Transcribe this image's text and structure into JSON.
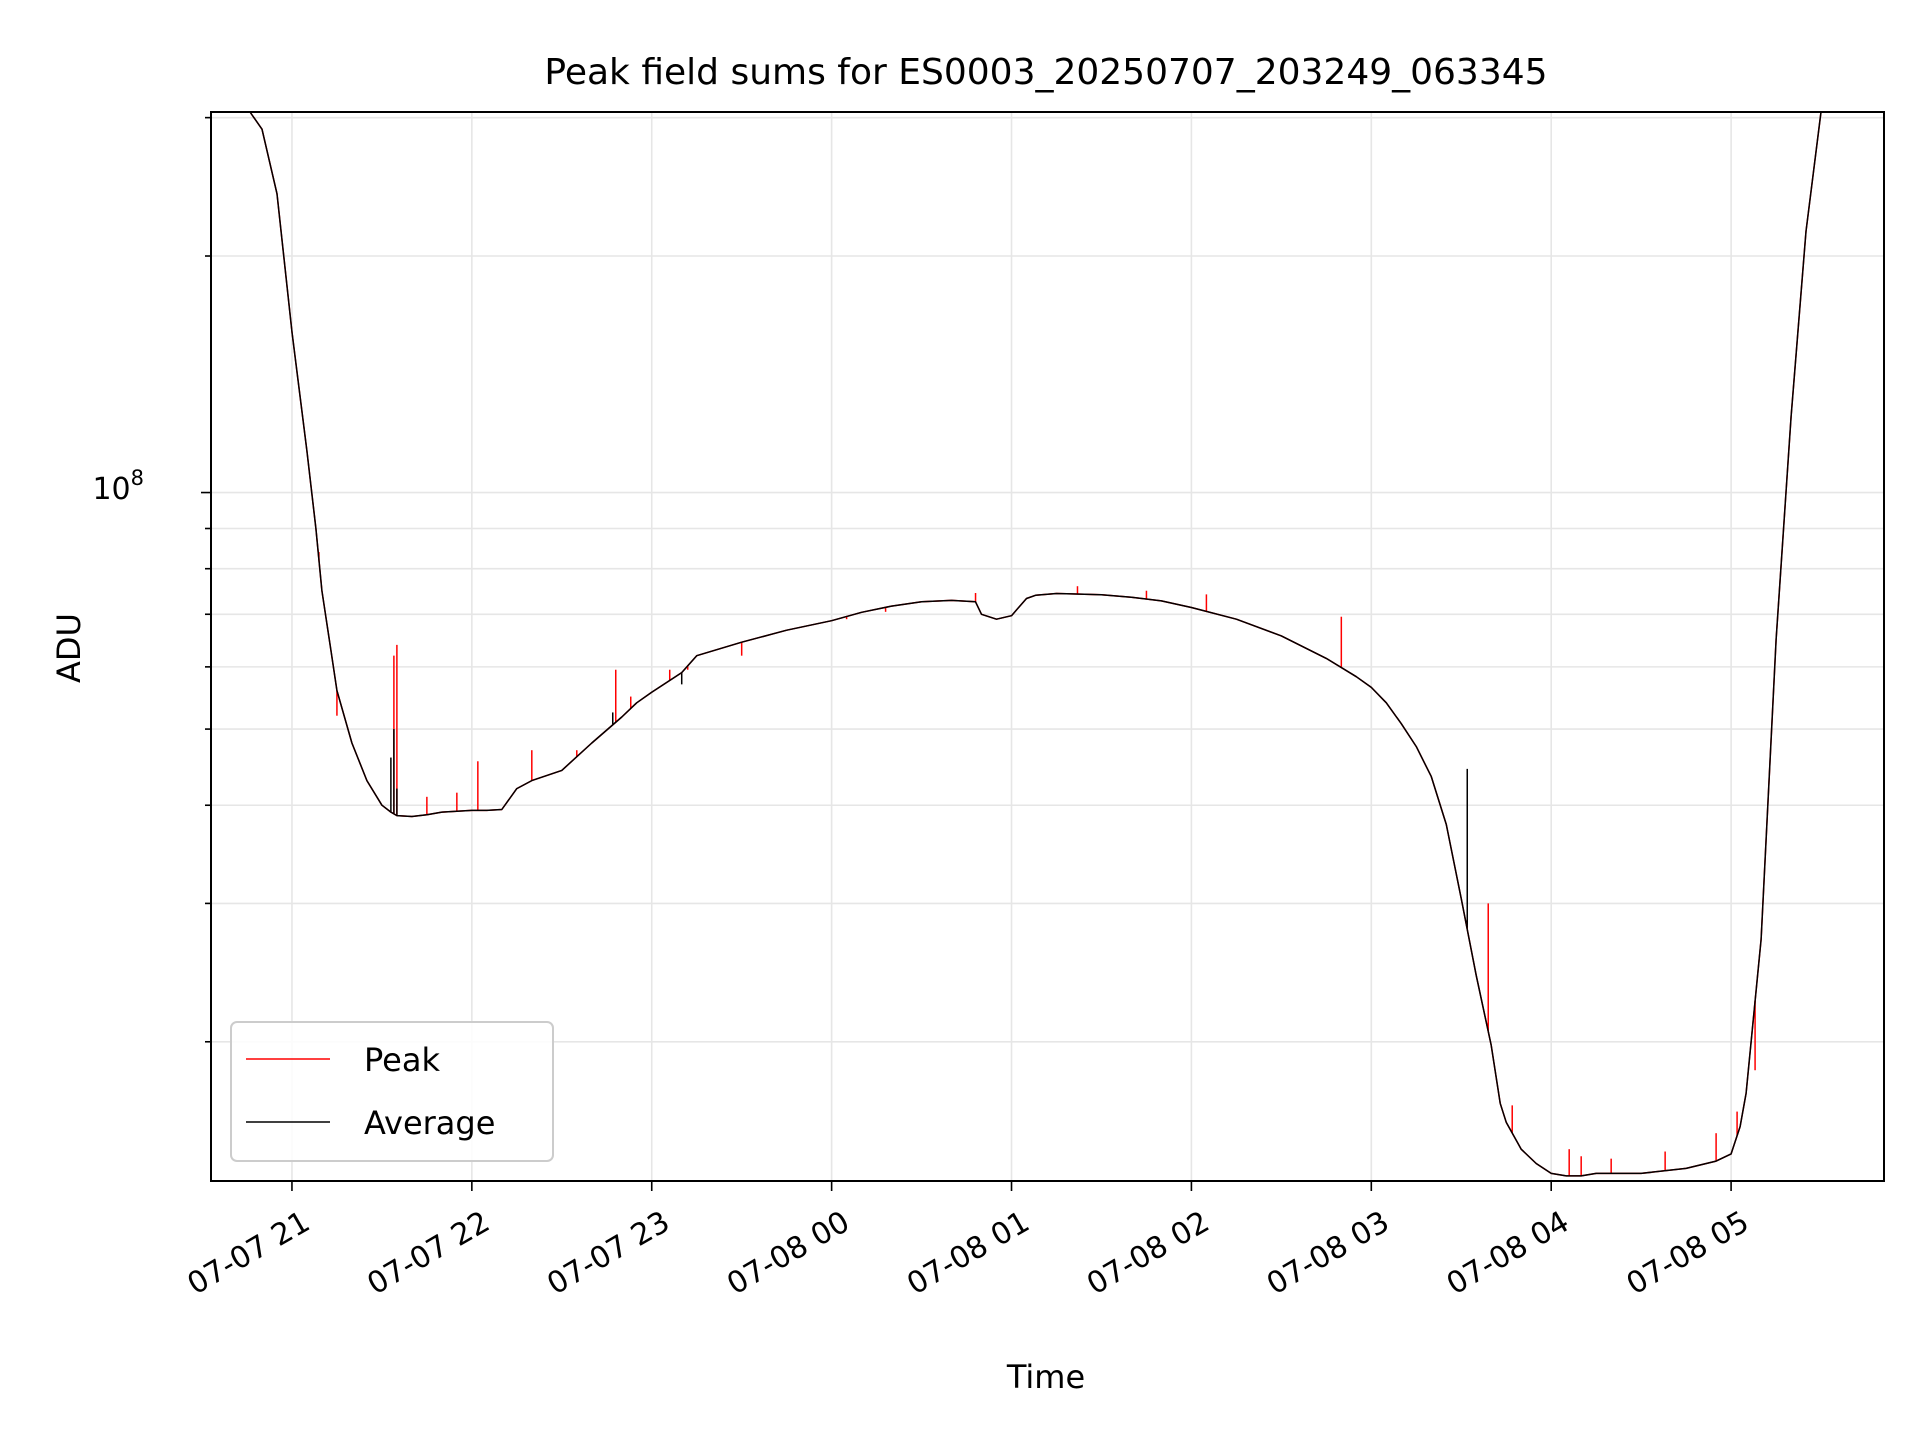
{
  "chart_data": {
    "type": "line",
    "title": "Peak field sums for ES0003_20250707_203249_063345",
    "xlabel": "Time",
    "ylabel": "ADU",
    "y_scale": "log",
    "y_tick_label": {
      "base": "10",
      "exp": "8",
      "value": 100000000
    },
    "ylim": [
      13300000,
      305000000
    ],
    "xlim": [
      "2025-07-07 20:33",
      "2025-07-08 05:51"
    ],
    "x_ticks": [
      {
        "t": "2025-07-07 21:00",
        "label": "07-07 21"
      },
      {
        "t": "2025-07-07 22:00",
        "label": "07-07 22"
      },
      {
        "t": "2025-07-07 23:00",
        "label": "07-07 23"
      },
      {
        "t": "2025-07-08 00:00",
        "label": "07-08 00"
      },
      {
        "t": "2025-07-08 01:00",
        "label": "07-08 01"
      },
      {
        "t": "2025-07-08 02:00",
        "label": "07-08 02"
      },
      {
        "t": "2025-07-08 03:00",
        "label": "07-08 03"
      },
      {
        "t": "2025-07-08 04:00",
        "label": "07-08 04"
      },
      {
        "t": "2025-07-08 05:00",
        "label": "07-08 05"
      }
    ],
    "grid": true,
    "legend": {
      "placement": "lower-left"
    },
    "series": [
      {
        "name": "Peak",
        "color": "#ff0000",
        "x": [
          "2025-07-07 20:46",
          "2025-07-07 20:50",
          "2025-07-07 20:55",
          "2025-07-07 21:00",
          "2025-07-07 21:05",
          "2025-07-07 21:08",
          "2025-07-07 21:10",
          "2025-07-07 21:13",
          "2025-07-07 21:15",
          "2025-07-07 21:20",
          "2025-07-07 21:25",
          "2025-07-07 21:30",
          "2025-07-07 21:33",
          "2025-07-07 21:35",
          "2025-07-07 21:40",
          "2025-07-07 21:45",
          "2025-07-07 21:50",
          "2025-07-07 22:00",
          "2025-07-07 22:05",
          "2025-07-07 22:10",
          "2025-07-07 22:15",
          "2025-07-07 22:20",
          "2025-07-07 22:30",
          "2025-07-07 22:40",
          "2025-07-07 22:50",
          "2025-07-07 22:55",
          "2025-07-07 23:00",
          "2025-07-07 23:10",
          "2025-07-07 23:15",
          "2025-07-07 23:30",
          "2025-07-07 23:45",
          "2025-07-08 00:00",
          "2025-07-08 00:10",
          "2025-07-08 00:20",
          "2025-07-08 00:30",
          "2025-07-08 00:40",
          "2025-07-08 00:48",
          "2025-07-08 00:50",
          "2025-07-08 00:55",
          "2025-07-08 01:00",
          "2025-07-08 01:05",
          "2025-07-08 01:08",
          "2025-07-08 01:10",
          "2025-07-08 01:15",
          "2025-07-08 01:20",
          "2025-07-08 01:30",
          "2025-07-08 01:40",
          "2025-07-08 01:50",
          "2025-07-08 02:00",
          "2025-07-08 02:15",
          "2025-07-08 02:30",
          "2025-07-08 02:45",
          "2025-07-08 02:55",
          "2025-07-08 03:00",
          "2025-07-08 03:05",
          "2025-07-08 03:10",
          "2025-07-08 03:15",
          "2025-07-08 03:20",
          "2025-07-08 03:25",
          "2025-07-08 03:30",
          "2025-07-08 03:35",
          "2025-07-08 03:40",
          "2025-07-08 03:43",
          "2025-07-08 03:45",
          "2025-07-08 03:50",
          "2025-07-08 03:55",
          "2025-07-08 04:00",
          "2025-07-08 04:05",
          "2025-07-08 04:10",
          "2025-07-08 04:15",
          "2025-07-08 04:30",
          "2025-07-08 04:45",
          "2025-07-08 04:55",
          "2025-07-08 05:00",
          "2025-07-08 05:03",
          "2025-07-08 05:05",
          "2025-07-08 05:10",
          "2025-07-08 05:15",
          "2025-07-08 05:20",
          "2025-07-08 05:25",
          "2025-07-08 05:30",
          "2025-07-08 05:35",
          "2025-07-08 05:38"
        ],
        "y": [
          305000000,
          290000000,
          240000000,
          160000000,
          113000000,
          90000000,
          75000000,
          63000000,
          56000000,
          48000000,
          43000000,
          40000000,
          39200000,
          38800000,
          38700000,
          38900000,
          39200000,
          39400000,
          39400000,
          39500000,
          42000000,
          43000000,
          44300000,
          48000000,
          51800000,
          54000000,
          55700000,
          59000000,
          62000000,
          64500000,
          66800000,
          68700000,
          70400000,
          71700000,
          72600000,
          72900000,
          72600000,
          70000000,
          69000000,
          69700000,
          73300000,
          74000000,
          74100000,
          74400000,
          74300000,
          74100000,
          73600000,
          72800000,
          71400000,
          69000000,
          65700000,
          61500000,
          58300000,
          56500000,
          54000000,
          50800000,
          47500000,
          43500000,
          37800000,
          30400000,
          24300000,
          19800000,
          16700000,
          15800000,
          14600000,
          14000000,
          13600000,
          13500000,
          13500000,
          13600000,
          13600000,
          13800000,
          14100000,
          14400000,
          15600000,
          17200000,
          27000000,
          65000000,
          125000000,
          215000000,
          305000000,
          305000000,
          305000000
        ],
        "spikes": [
          {
            "x": "2025-07-07 21:09",
            "y": 84000000
          },
          {
            "x": "2025-07-07 21:15",
            "y": 52000000
          },
          {
            "x": "2025-07-07 21:34",
            "y": 62000000
          },
          {
            "x": "2025-07-07 21:35",
            "y": 64000000
          },
          {
            "x": "2025-07-07 21:45",
            "y": 41000000
          },
          {
            "x": "2025-07-07 21:55",
            "y": 41500000
          },
          {
            "x": "2025-07-07 22:02",
            "y": 45500000
          },
          {
            "x": "2025-07-07 22:20",
            "y": 47000000
          },
          {
            "x": "2025-07-07 22:35",
            "y": 47000000
          },
          {
            "x": "2025-07-07 22:48",
            "y": 59500000
          },
          {
            "x": "2025-07-07 22:53",
            "y": 55000000
          },
          {
            "x": "2025-07-07 23:06",
            "y": 59500000
          },
          {
            "x": "2025-07-07 23:12",
            "y": 59500000
          },
          {
            "x": "2025-07-07 23:30",
            "y": 62000000
          },
          {
            "x": "2025-07-08 00:05",
            "y": 69000000
          },
          {
            "x": "2025-07-08 00:18",
            "y": 70500000
          },
          {
            "x": "2025-07-08 00:48",
            "y": 74500000
          },
          {
            "x": "2025-07-08 01:22",
            "y": 76000000
          },
          {
            "x": "2025-07-08 01:45",
            "y": 75000000
          },
          {
            "x": "2025-07-08 02:05",
            "y": 74200000
          },
          {
            "x": "2025-07-08 02:50",
            "y": 69500000
          },
          {
            "x": "2025-07-08 03:39",
            "y": 30000000
          },
          {
            "x": "2025-07-08 03:47",
            "y": 16600000
          },
          {
            "x": "2025-07-08 04:06",
            "y": 14600000
          },
          {
            "x": "2025-07-08 04:10",
            "y": 14300000
          },
          {
            "x": "2025-07-08 04:20",
            "y": 14200000
          },
          {
            "x": "2025-07-08 04:38",
            "y": 14500000
          },
          {
            "x": "2025-07-08 04:55",
            "y": 15300000
          },
          {
            "x": "2025-07-08 05:02",
            "y": 16300000
          },
          {
            "x": "2025-07-08 05:08",
            "y": 18400000
          }
        ]
      },
      {
        "name": "Average",
        "color": "#000000",
        "x": [
          "2025-07-07 20:46",
          "2025-07-07 20:50",
          "2025-07-07 20:55",
          "2025-07-07 21:00",
          "2025-07-07 21:05",
          "2025-07-07 21:08",
          "2025-07-07 21:10",
          "2025-07-07 21:13",
          "2025-07-07 21:15",
          "2025-07-07 21:20",
          "2025-07-07 21:25",
          "2025-07-07 21:30",
          "2025-07-07 21:33",
          "2025-07-07 21:35",
          "2025-07-07 21:40",
          "2025-07-07 21:45",
          "2025-07-07 21:50",
          "2025-07-07 22:00",
          "2025-07-07 22:05",
          "2025-07-07 22:10",
          "2025-07-07 22:15",
          "2025-07-07 22:20",
          "2025-07-07 22:30",
          "2025-07-07 22:40",
          "2025-07-07 22:50",
          "2025-07-07 22:55",
          "2025-07-07 23:00",
          "2025-07-07 23:10",
          "2025-07-07 23:15",
          "2025-07-07 23:30",
          "2025-07-07 23:45",
          "2025-07-08 00:00",
          "2025-07-08 00:10",
          "2025-07-08 00:20",
          "2025-07-08 00:30",
          "2025-07-08 00:40",
          "2025-07-08 00:48",
          "2025-07-08 00:50",
          "2025-07-08 00:55",
          "2025-07-08 01:00",
          "2025-07-08 01:05",
          "2025-07-08 01:08",
          "2025-07-08 01:10",
          "2025-07-08 01:15",
          "2025-07-08 01:20",
          "2025-07-08 01:30",
          "2025-07-08 01:40",
          "2025-07-08 01:50",
          "2025-07-08 02:00",
          "2025-07-08 02:15",
          "2025-07-08 02:30",
          "2025-07-08 02:45",
          "2025-07-08 02:55",
          "2025-07-08 03:00",
          "2025-07-08 03:05",
          "2025-07-08 03:10",
          "2025-07-08 03:15",
          "2025-07-08 03:20",
          "2025-07-08 03:25",
          "2025-07-08 03:30",
          "2025-07-08 03:35",
          "2025-07-08 03:40",
          "2025-07-08 03:43",
          "2025-07-08 03:45",
          "2025-07-08 03:50",
          "2025-07-08 03:55",
          "2025-07-08 04:00",
          "2025-07-08 04:05",
          "2025-07-08 04:10",
          "2025-07-08 04:15",
          "2025-07-08 04:30",
          "2025-07-08 04:45",
          "2025-07-08 04:55",
          "2025-07-08 05:00",
          "2025-07-08 05:03",
          "2025-07-08 05:05",
          "2025-07-08 05:10",
          "2025-07-08 05:15",
          "2025-07-08 05:20",
          "2025-07-08 05:25",
          "2025-07-08 05:30",
          "2025-07-08 05:35",
          "2025-07-08 05:38"
        ],
        "y": [
          305000000,
          290000000,
          240000000,
          160000000,
          113000000,
          90000000,
          75000000,
          63000000,
          56000000,
          48000000,
          43000000,
          40000000,
          39200000,
          38800000,
          38700000,
          38900000,
          39200000,
          39400000,
          39400000,
          39500000,
          42000000,
          43000000,
          44300000,
          48000000,
          51800000,
          54000000,
          55700000,
          59000000,
          62000000,
          64500000,
          66800000,
          68700000,
          70400000,
          71700000,
          72600000,
          72900000,
          72600000,
          70000000,
          69000000,
          69700000,
          73300000,
          74000000,
          74100000,
          74400000,
          74300000,
          74100000,
          73600000,
          72800000,
          71400000,
          69000000,
          65700000,
          61500000,
          58300000,
          56500000,
          54000000,
          50800000,
          47500000,
          43500000,
          37800000,
          30400000,
          24300000,
          19800000,
          16700000,
          15800000,
          14600000,
          14000000,
          13600000,
          13500000,
          13500000,
          13600000,
          13600000,
          13800000,
          14100000,
          14400000,
          15600000,
          17200000,
          27000000,
          65000000,
          125000000,
          215000000,
          305000000,
          305000000,
          305000000
        ],
        "spikes": [
          {
            "x": "2025-07-07 21:33",
            "y": 46000000
          },
          {
            "x": "2025-07-07 21:34",
            "y": 50000000
          },
          {
            "x": "2025-07-07 21:35",
            "y": 42000000
          },
          {
            "x": "2025-07-07 22:47",
            "y": 52500000
          },
          {
            "x": "2025-07-07 23:10",
            "y": 57000000
          },
          {
            "x": "2025-07-08 03:32",
            "y": 44500000
          }
        ]
      }
    ]
  }
}
